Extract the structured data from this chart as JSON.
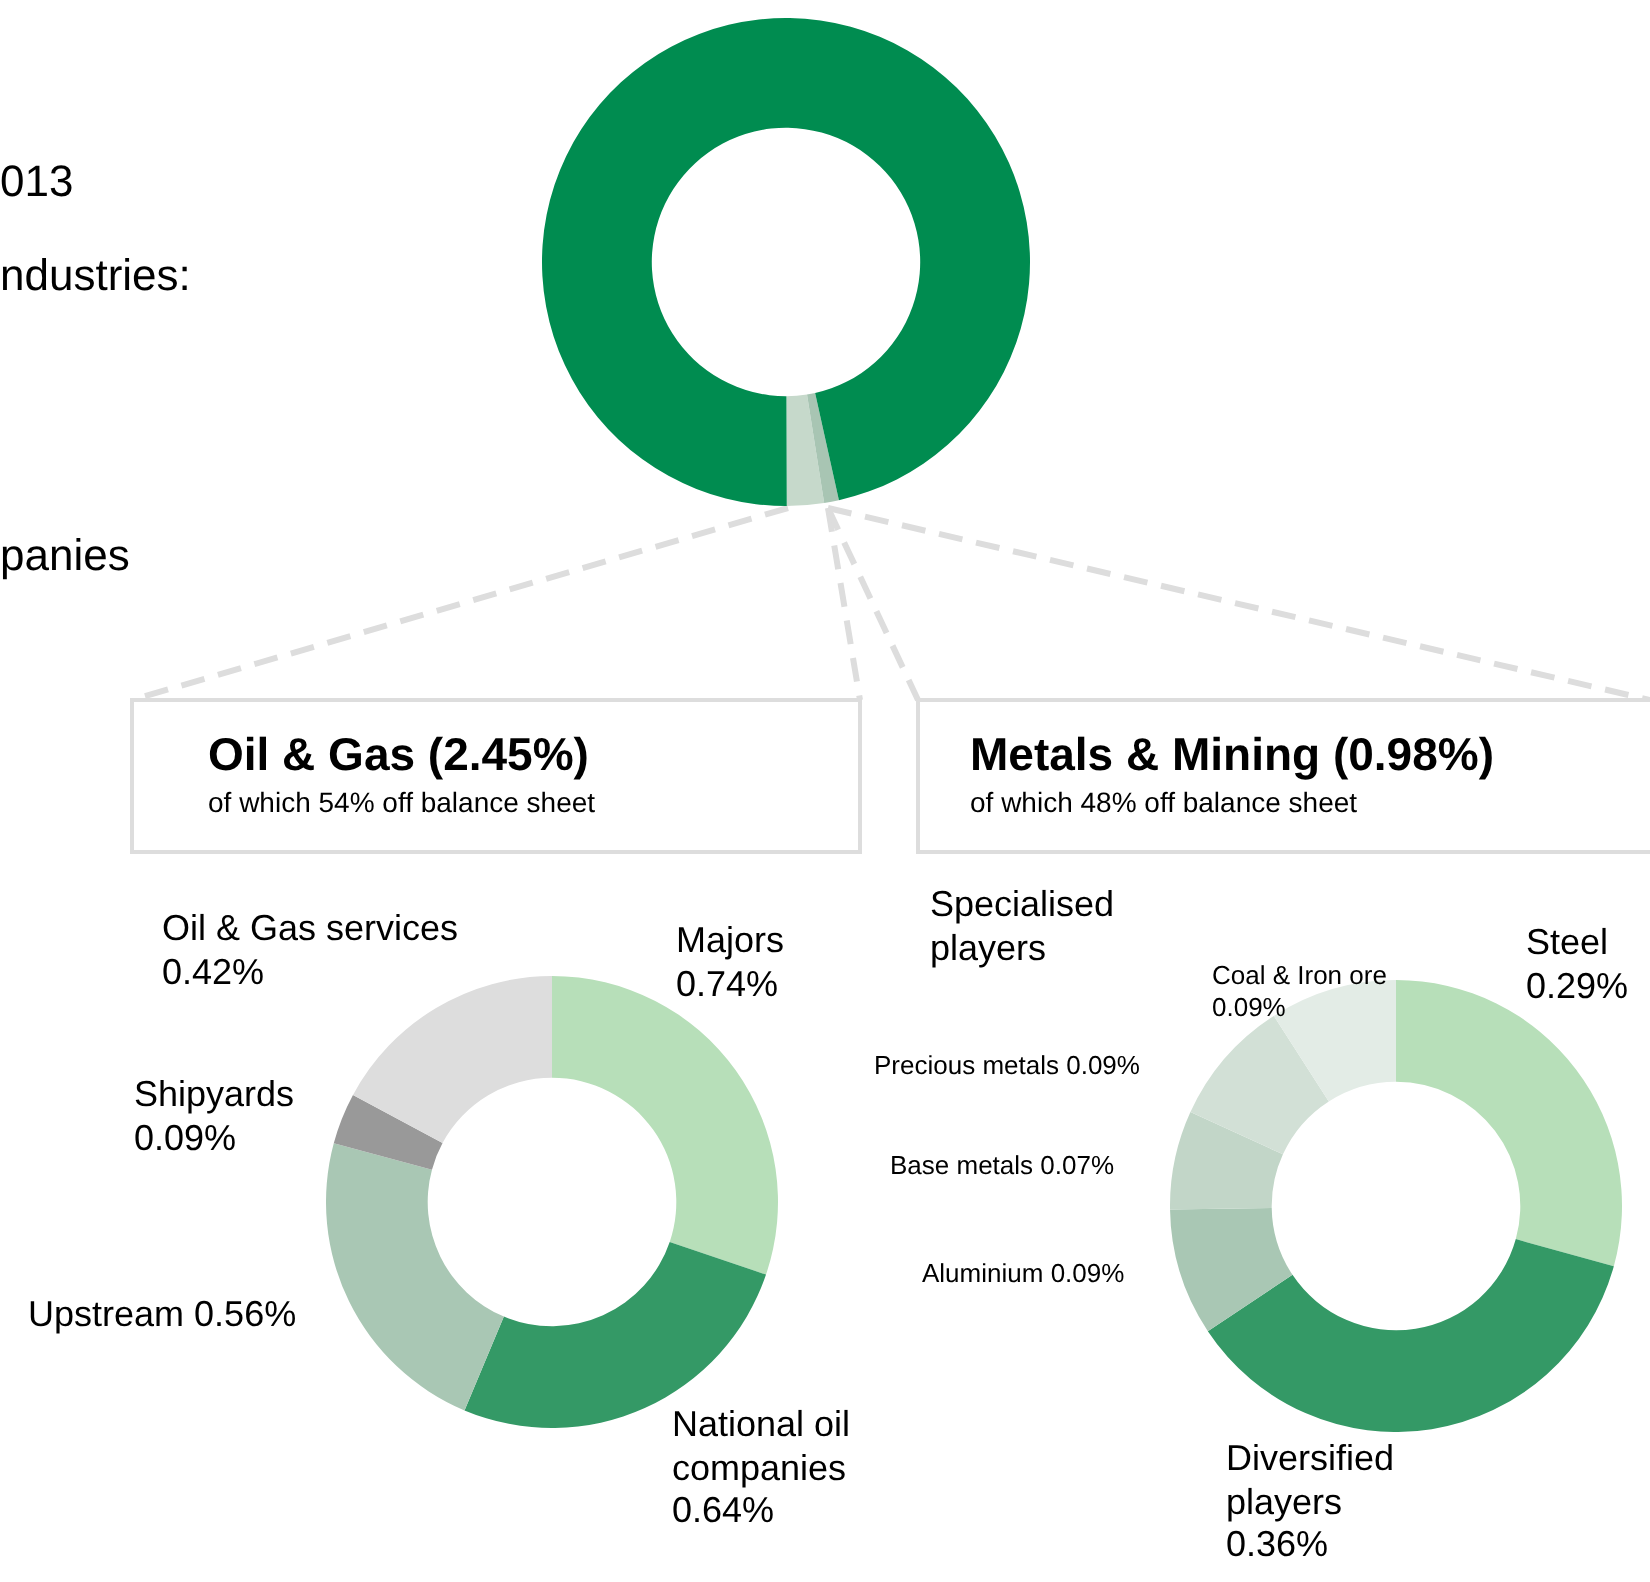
{
  "chart_data": [
    {
      "type": "donut",
      "categories": [
        null,
        null,
        null
      ],
      "values": [
        2.45,
        0.98,
        96.57
      ],
      "colors": [
        "#c6d9cb",
        "#a8c5b3",
        "#008c50"
      ],
      "annotations": [
        "013",
        "ndustries:",
        "panies"
      ]
    },
    {
      "type": "donut",
      "title": "Oil & Gas (2.45%)",
      "subtitle": "of which 54% off balance sheet",
      "categories": [
        "Majors",
        "National oil companies",
        "Upstream",
        "Shipyards",
        "Oil & Gas services"
      ],
      "values": [
        0.74,
        0.64,
        0.56,
        0.09,
        0.42
      ],
      "value_labels": [
        "0.74%",
        "0.64%",
        "0.56%",
        "0.09%",
        "0.42%"
      ],
      "colors": [
        "#b7dfb9",
        "#349966",
        "#a9c7b4",
        "#999999",
        "#dddddd"
      ]
    },
    {
      "type": "donut",
      "title": "Metals & Mining (0.98%)",
      "subtitle": "of which 48% off balance sheet",
      "categories": [
        "Steel",
        "Diversified players",
        "Aluminium",
        "Base metals",
        "Precious metals",
        "Coal & Iron ore"
      ],
      "values": [
        0.29,
        0.36,
        0.09,
        0.07,
        0.09,
        0.09
      ],
      "value_labels": [
        "0.29%",
        "0.36%",
        "0.09%",
        "0.07%",
        "0.09%",
        "0.09%"
      ],
      "colors": [
        "#b7dfb9",
        "#349966",
        "#a9c7b4",
        "#c2d6c8",
        "#d2e0d6",
        "#e3ece6"
      ],
      "annotations": [
        "Specialised players"
      ]
    }
  ]
}
